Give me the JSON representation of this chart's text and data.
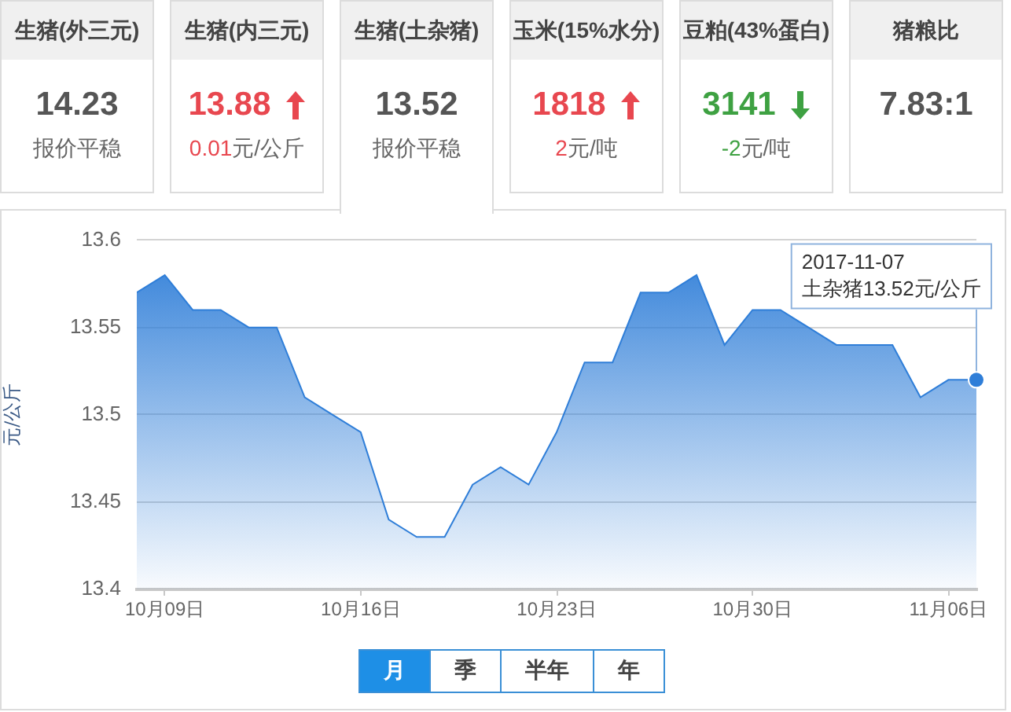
{
  "chart_data": [
    {
      "type": "other",
      "title": "生猪(外三元)",
      "annotations": [
        "14.23",
        "报价平稳"
      ],
      "color": "#555555"
    },
    {
      "type": "other",
      "title": "生猪(内三元)",
      "annotations": [
        "13.88",
        "0.01",
        "元/公斤"
      ],
      "color": "#e8474f"
    },
    {
      "type": "other",
      "title": "生猪(土杂猪)",
      "annotations": [
        "13.52",
        "报价平稳"
      ],
      "color": "#555555"
    },
    {
      "type": "other",
      "title": "玉米(15%水分)",
      "annotations": [
        "1818",
        "2",
        "元/吨"
      ],
      "color": "#e8474f"
    },
    {
      "type": "other",
      "title": "豆粕(43%蛋白)",
      "annotations": [
        "3141",
        "-2",
        "元/吨"
      ],
      "color": "#3ea142"
    },
    {
      "type": "other",
      "title": "猪粮比",
      "annotations": [
        "7.83:1"
      ],
      "color": "#555555"
    },
    {
      "type": "area",
      "ylabel": "元/公斤",
      "color": "#2f7ed8",
      "x": [
        "2017-10-08",
        "2017-10-09",
        "2017-10-10",
        "2017-10-11",
        "2017-10-12",
        "2017-10-13",
        "2017-10-14",
        "2017-10-15",
        "2017-10-16",
        "2017-10-17",
        "2017-10-18",
        "2017-10-19",
        "2017-10-20",
        "2017-10-21",
        "2017-10-22",
        "2017-10-23",
        "2017-10-24",
        "2017-10-25",
        "2017-10-26",
        "2017-10-27",
        "2017-10-28",
        "2017-10-29",
        "2017-10-30",
        "2017-10-31",
        "2017-11-01",
        "2017-11-02",
        "2017-11-03",
        "2017-11-04",
        "2017-11-05",
        "2017-11-06",
        "2017-11-07"
      ],
      "values": [
        13.57,
        13.58,
        13.56,
        13.56,
        13.55,
        13.55,
        13.51,
        13.5,
        13.49,
        13.44,
        13.43,
        13.43,
        13.46,
        13.47,
        13.46,
        13.49,
        13.53,
        13.53,
        13.57,
        13.57,
        13.58,
        13.54,
        13.56,
        13.56,
        13.55,
        13.54,
        13.54,
        13.54,
        13.51,
        13.52,
        13.52
      ],
      "xlim": [
        "2017-10-08",
        "2017-11-07"
      ],
      "xticks": [
        {
          "value": "2017-10-09",
          "label": "10月09日"
        },
        {
          "value": "2017-10-16",
          "label": "10月16日"
        },
        {
          "value": "2017-10-23",
          "label": "10月23日"
        },
        {
          "value": "2017-10-30",
          "label": "10月30日"
        },
        {
          "value": "2017-11-06",
          "label": "11月06日"
        }
      ],
      "ylim": [
        13.4,
        13.6
      ],
      "yticks": [
        13.4,
        13.45,
        13.5,
        13.55,
        13.6
      ],
      "grid": "y",
      "annotations": [
        {
          "text": "2017-11-07\n土杂猪13.52元/公斤",
          "x": "2017-11-07",
          "y": 13.52
        }
      ]
    },
    {
      "type": "other",
      "annotations": [
        "月",
        "季",
        "半年",
        "年"
      ]
    }
  ]
}
